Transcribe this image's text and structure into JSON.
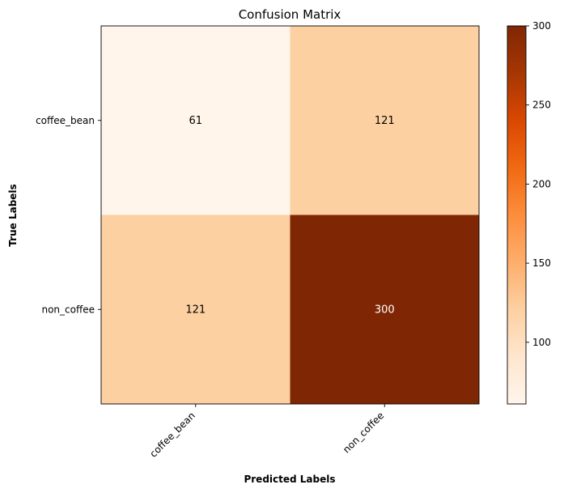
{
  "chart_data": {
    "type": "heatmap",
    "title": "Confusion Matrix",
    "xlabel": "Predicted Labels",
    "ylabel": "True Labels",
    "x_categories": [
      "coffee_bean",
      "non_coffee"
    ],
    "y_categories": [
      "coffee_bean",
      "non_coffee"
    ],
    "values": [
      [
        61,
        121
      ],
      [
        121,
        300
      ]
    ],
    "colormap": "Oranges",
    "colorbar": {
      "min": 61,
      "max": 300,
      "ticks": [
        100,
        150,
        200,
        250,
        300
      ]
    },
    "grid": false,
    "legend": "none"
  }
}
